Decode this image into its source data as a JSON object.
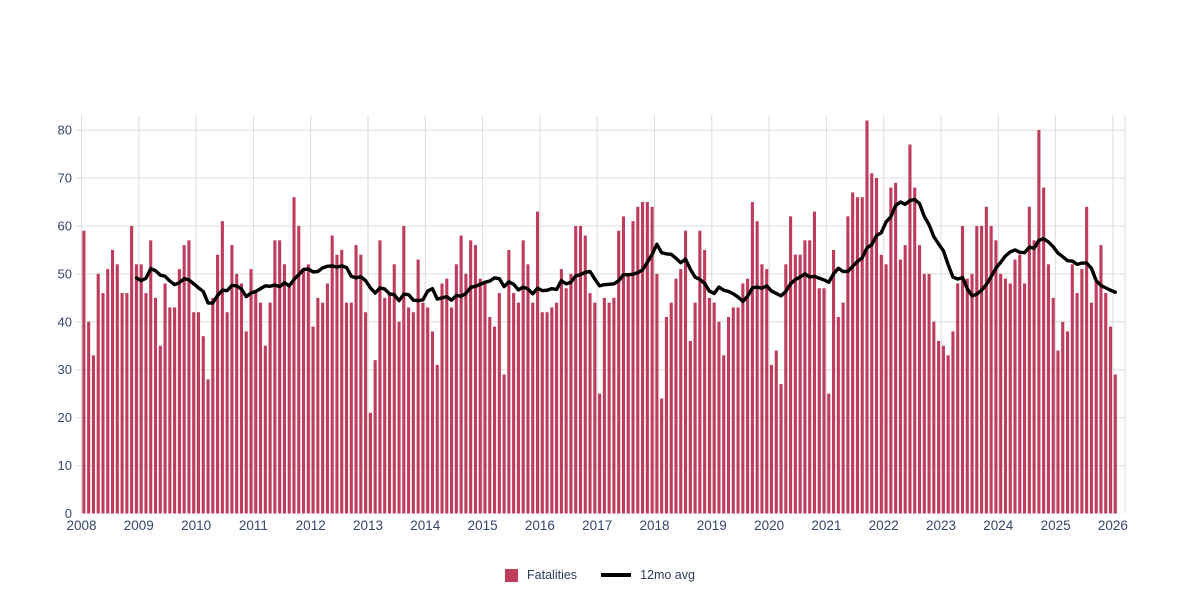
{
  "legend": {
    "fatalities_label": "Fatalities",
    "avg_label": "12mo avg"
  },
  "colors": {
    "bar": "#bf3c5c",
    "avg_line": "#000000",
    "axis_text": "#35466b",
    "gridline": "#dcdcdc",
    "background": "#ffffff"
  },
  "chart_data": {
    "type": "bar",
    "title": "",
    "xlabel": "",
    "ylabel": "",
    "x_start": {
      "year": 2008,
      "month": 1
    },
    "x_frequency": "monthly",
    "x_tick_labels": [
      "2008",
      "2009",
      "2010",
      "2011",
      "2012",
      "2013",
      "2014",
      "2015",
      "2016",
      "2017",
      "2018",
      "2019",
      "2020",
      "2021",
      "2022",
      "2023",
      "2024",
      "2025",
      "2026"
    ],
    "y_ticks": [
      0,
      10,
      20,
      30,
      40,
      50,
      60,
      70,
      80
    ],
    "ylim": [
      0,
      83
    ],
    "grid": true,
    "legend_position": "bottom-center",
    "series": [
      {
        "name": "Fatalities",
        "type": "bar",
        "color": "#bf3c5c",
        "values": [
          59,
          40,
          33,
          50,
          46,
          51,
          55,
          52,
          46,
          46,
          60,
          52,
          52,
          46,
          57,
          45,
          35,
          48,
          43,
          43,
          51,
          56,
          57,
          42,
          42,
          37,
          28,
          45,
          54,
          61,
          42,
          56,
          50,
          48,
          38,
          51,
          46,
          44,
          35,
          44,
          57,
          57,
          52,
          48,
          66,
          60,
          51,
          52,
          39,
          45,
          44,
          48,
          58,
          54,
          55,
          44,
          44,
          56,
          54,
          42,
          21,
          32,
          57,
          45,
          46,
          52,
          40,
          60,
          43,
          42,
          53,
          44,
          43,
          38,
          31,
          48,
          49,
          43,
          52,
          58,
          50,
          57,
          56,
          49,
          48,
          41,
          39,
          46,
          29,
          55,
          46,
          44,
          57,
          52,
          44,
          63,
          42,
          42,
          43,
          44,
          51,
          47,
          50,
          60,
          60,
          58,
          46,
          44,
          25,
          45,
          44,
          45,
          59,
          62,
          50,
          61,
          64,
          65,
          65,
          64,
          50,
          24,
          41,
          44,
          49,
          51,
          59,
          36,
          44,
          59,
          55,
          45,
          44,
          40,
          33,
          41,
          43,
          43,
          48,
          49,
          65,
          61,
          52,
          51,
          31,
          34,
          27,
          52,
          62,
          54,
          54,
          57,
          57,
          63,
          47,
          47,
          25,
          55,
          41,
          44,
          62,
          67,
          66,
          66,
          82,
          71,
          70,
          54,
          52,
          68,
          69,
          53,
          56,
          77,
          68,
          56,
          50,
          50,
          40,
          36,
          35,
          33,
          38,
          48,
          60,
          49,
          50,
          60,
          60,
          64,
          60,
          57,
          50,
          49,
          48,
          53,
          54,
          48,
          64,
          57,
          80,
          68,
          52,
          45,
          34,
          40,
          38,
          52,
          46,
          51,
          64,
          44,
          49,
          56,
          46,
          39,
          29
        ]
      },
      {
        "name": "12mo avg",
        "type": "line",
        "color": "#000000",
        "window": 12,
        "derived": "trailing 12-month mean of Fatalities"
      }
    ]
  }
}
